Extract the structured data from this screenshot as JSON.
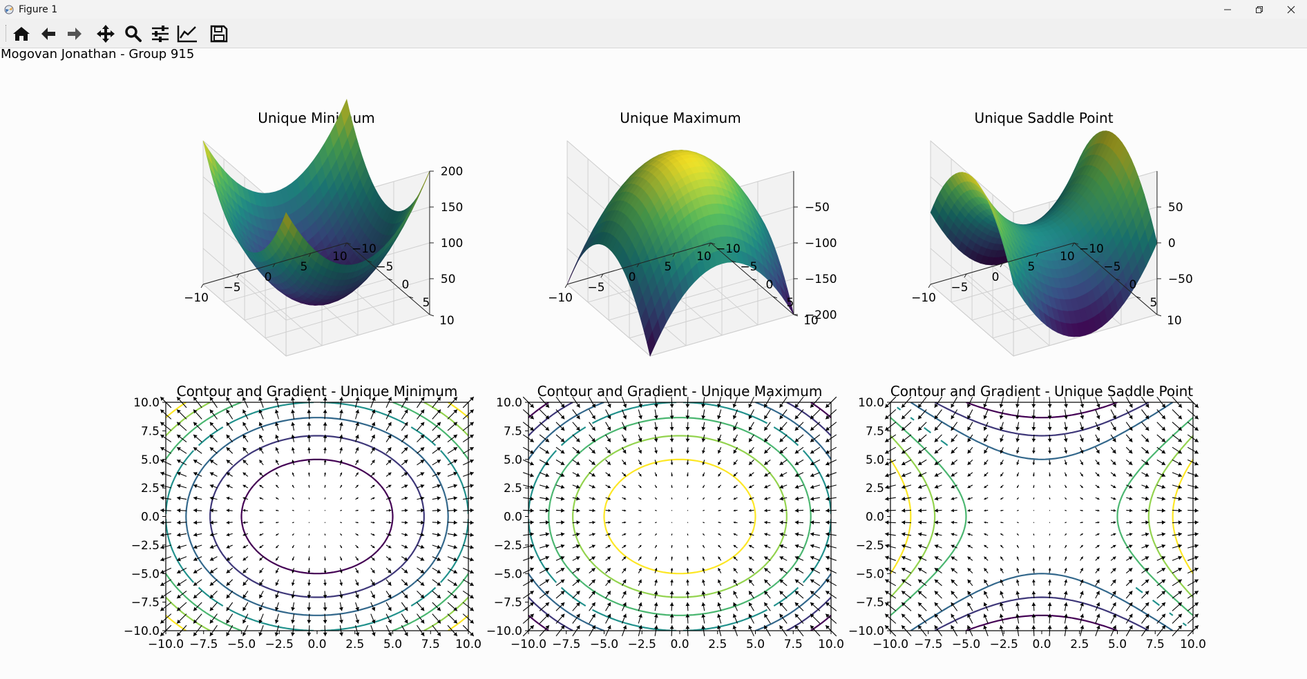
{
  "window": {
    "title": "Figure 1",
    "controls": [
      "minimize",
      "restore",
      "close"
    ]
  },
  "toolbar": {
    "buttons": [
      {
        "name": "home",
        "icon": "home-icon"
      },
      {
        "name": "back",
        "icon": "arrow-left-icon"
      },
      {
        "name": "forward",
        "icon": "arrow-right-icon"
      },
      {
        "name": "pan",
        "icon": "move-icon"
      },
      {
        "name": "zoom",
        "icon": "magnifier-icon"
      },
      {
        "name": "configure-subplots",
        "icon": "sliders-icon"
      },
      {
        "name": "edit-axes",
        "icon": "line-chart-icon"
      },
      {
        "name": "save",
        "icon": "floppy-disk-icon"
      }
    ]
  },
  "figure": {
    "caption": "Mogovan Jonathan - Group 915"
  },
  "colors": {
    "background": "#fcfcfc",
    "pane": "#f2f2f2",
    "viridis": [
      "#440154",
      "#3b528b",
      "#21918c",
      "#5ec962",
      "#fde725"
    ]
  },
  "chart_data": [
    {
      "type": "surface",
      "title": "Unique Minimum",
      "function": "x^2 + y^2",
      "xlim": [
        -10,
        10
      ],
      "ylim": [
        -10,
        10
      ],
      "zlim": [
        0,
        200
      ],
      "x_ticks": [
        "−10",
        "−5",
        "0",
        "5",
        "10"
      ],
      "y_ticks": [
        "−10",
        "−5",
        "0",
        "5",
        "10"
      ],
      "z_ticks": [
        "50",
        "100",
        "150",
        "200"
      ],
      "colormap": "viridis"
    },
    {
      "type": "surface",
      "title": "Unique Maximum",
      "function": "-(x^2 + y^2)",
      "xlim": [
        -10,
        10
      ],
      "ylim": [
        -10,
        10
      ],
      "zlim": [
        -200,
        0
      ],
      "x_ticks": [
        "−10",
        "−5",
        "0",
        "5",
        "10"
      ],
      "y_ticks": [
        "−10",
        "−5",
        "0",
        "5",
        "10"
      ],
      "z_ticks": [
        "−50",
        "−100",
        "−150",
        "−200"
      ],
      "colormap": "viridis"
    },
    {
      "type": "surface",
      "title": "Unique Saddle Point",
      "function": "x^2 - y^2",
      "xlim": [
        -10,
        10
      ],
      "ylim": [
        -10,
        10
      ],
      "zlim": [
        -100,
        100
      ],
      "x_ticks": [
        "−10",
        "−5",
        "0",
        "5",
        "10"
      ],
      "y_ticks": [
        "−10",
        "−5",
        "0",
        "5",
        "10"
      ],
      "z_ticks": [
        "50",
        "0",
        "−50"
      ],
      "colormap": "viridis"
    },
    {
      "type": "contour",
      "title": "Contour and Gradient - Unique Minimum",
      "function": "x^2 + y^2",
      "xlim": [
        -10,
        10
      ],
      "ylim": [
        -10,
        10
      ],
      "levels": [
        25,
        50,
        75,
        100,
        125,
        150,
        175
      ],
      "x_ticks": [
        "−10.0",
        "−7.5",
        "−5.0",
        "−2.5",
        "0.0",
        "2.5",
        "5.0",
        "7.5",
        "10.0"
      ],
      "y_ticks": [
        "10.0",
        "7.5",
        "5.0",
        "2.5",
        "0.0",
        "−2.5",
        "−5.0",
        "−7.5",
        "−10.0"
      ],
      "quiver": "gradient field, 20×20 grid"
    },
    {
      "type": "contour",
      "title": "Contour and Gradient - Unique Maximum",
      "function": "-(x^2 + y^2)",
      "xlim": [
        -10,
        10
      ],
      "ylim": [
        -10,
        10
      ],
      "levels": [
        -175,
        -150,
        -125,
        -100,
        -75,
        -50,
        -25
      ],
      "x_ticks": [
        "−10.0",
        "−7.5",
        "−5.0",
        "−2.5",
        "0.0",
        "2.5",
        "5.0",
        "7.5",
        "10.0"
      ],
      "y_ticks": [
        "10.0",
        "7.5",
        "5.0",
        "2.5",
        "0.0",
        "−2.5",
        "−5.0",
        "−7.5",
        "−10.0"
      ],
      "quiver": "gradient field, 20×20 grid"
    },
    {
      "type": "contour",
      "title": "Contour and Gradient - Unique Saddle Point",
      "function": "x^2 - y^2",
      "xlim": [
        -10,
        10
      ],
      "ylim": [
        -10,
        10
      ],
      "levels": [
        -75,
        -50,
        -25,
        0,
        25,
        50,
        75
      ],
      "x_ticks": [
        "−10.0",
        "−7.5",
        "−5.0",
        "−2.5",
        "0.0",
        "2.5",
        "5.0",
        "7.5",
        "10.0"
      ],
      "y_ticks": [
        "10.0",
        "7.5",
        "5.0",
        "2.5",
        "0.0",
        "−2.5",
        "−5.0",
        "−7.5",
        "−10.0"
      ],
      "quiver": "gradient field, 20×20 grid"
    }
  ]
}
